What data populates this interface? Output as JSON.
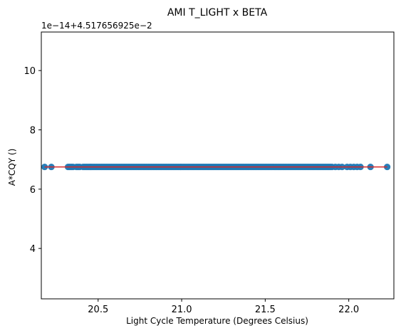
{
  "chart_data": {
    "type": "scatter",
    "title": "AMI T_LIGHT x BETA",
    "xlabel": "Light Cycle Temperature (Degrees Celsius)",
    "ylabel": "A*CQY ()",
    "y_offset_label": "1e−14+4.517656925e−2",
    "xlim": [
      20.16,
      22.27
    ],
    "ylim": [
      2.3,
      11.3
    ],
    "x_ticks": [
      20.5,
      21.0,
      21.5,
      22.0
    ],
    "x_tick_labels": [
      "20.5",
      "21.0",
      "21.5",
      "22.0"
    ],
    "y_ticks": [
      4,
      6,
      8,
      10
    ],
    "y_tick_labels": [
      "4",
      "6",
      "8",
      "10"
    ],
    "grid": false,
    "scatter": {
      "color": "#1f77b4",
      "y": 6.75,
      "x": [
        20.18,
        20.22,
        20.32,
        20.33,
        20.34,
        20.35,
        20.37,
        20.38,
        20.39,
        20.41,
        20.42,
        20.43,
        20.44,
        20.45,
        20.46,
        20.47,
        20.48,
        20.49,
        20.5,
        20.51,
        20.52,
        20.53,
        20.54,
        20.55,
        20.56,
        20.57,
        20.58,
        20.59,
        20.6,
        20.61,
        20.62,
        20.63,
        20.64,
        20.65,
        20.66,
        20.67,
        20.68,
        20.69,
        20.7,
        20.71,
        20.72,
        20.73,
        20.74,
        20.75,
        20.76,
        20.77,
        20.78,
        20.79,
        20.8,
        20.81,
        20.82,
        20.83,
        20.84,
        20.85,
        20.86,
        20.87,
        20.88,
        20.89,
        20.9,
        20.91,
        20.92,
        20.93,
        20.94,
        20.95,
        20.96,
        20.97,
        20.98,
        20.99,
        21.0,
        21.01,
        21.02,
        21.03,
        21.04,
        21.05,
        21.06,
        21.07,
        21.08,
        21.09,
        21.1,
        21.11,
        21.12,
        21.13,
        21.14,
        21.15,
        21.16,
        21.17,
        21.18,
        21.19,
        21.2,
        21.21,
        21.22,
        21.23,
        21.24,
        21.25,
        21.26,
        21.27,
        21.28,
        21.29,
        21.3,
        21.31,
        21.32,
        21.33,
        21.34,
        21.35,
        21.36,
        21.37,
        21.38,
        21.39,
        21.4,
        21.41,
        21.42,
        21.43,
        21.44,
        21.45,
        21.46,
        21.47,
        21.48,
        21.49,
        21.5,
        21.51,
        21.52,
        21.53,
        21.54,
        21.55,
        21.56,
        21.57,
        21.58,
        21.59,
        21.6,
        21.61,
        21.62,
        21.63,
        21.64,
        21.65,
        21.66,
        21.67,
        21.68,
        21.69,
        21.7,
        21.71,
        21.72,
        21.73,
        21.74,
        21.75,
        21.76,
        21.77,
        21.78,
        21.79,
        21.8,
        21.81,
        21.82,
        21.83,
        21.84,
        21.85,
        21.86,
        21.87,
        21.88,
        21.89,
        21.9,
        21.92,
        21.94,
        21.96,
        21.99,
        22.01,
        22.03,
        22.05,
        22.07,
        22.13,
        22.23
      ]
    },
    "fit_line": {
      "color": "#d62728",
      "x": [
        20.18,
        22.23
      ],
      "y": [
        6.75,
        6.75
      ]
    }
  }
}
